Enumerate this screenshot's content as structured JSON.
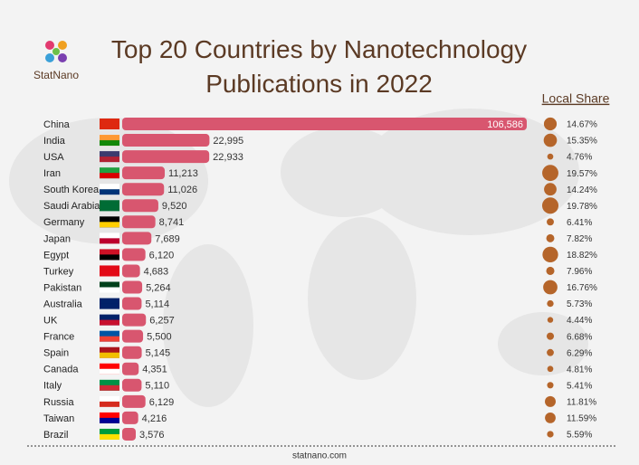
{
  "chart_data": {
    "type": "bar",
    "title": "Top 20 Countries by Nanotechnology Publications in 2022",
    "logo_text": "StatNano",
    "source": "statnano.com",
    "categories": [
      "China",
      "India",
      "USA",
      "Iran",
      "South Korea",
      "Saudi Arabia",
      "Germany",
      "Japan",
      "Egypt",
      "Turkey",
      "Pakistan",
      "Australia",
      "UK",
      "France",
      "Spain",
      "Canada",
      "Italy",
      "Russia",
      "Taiwan",
      "Brazil"
    ],
    "values": [
      106586,
      22995,
      22933,
      11213,
      11026,
      9520,
      8741,
      7689,
      6120,
      4683,
      5264,
      5114,
      6257,
      5500,
      5145,
      4351,
      5110,
      6129,
      4216,
      3576
    ],
    "value_labels": [
      "106,586",
      "22,995",
      "22,933",
      "11,213",
      "11,026",
      "9,520",
      "8,741",
      "7,689",
      "6,120",
      "4,683",
      "5,264",
      "5,114",
      "6,257",
      "5,500",
      "5,145",
      "4,351",
      "5,110",
      "6,129",
      "4,216",
      "3,576"
    ],
    "color": "#d8566f",
    "local_share": {
      "name": "Local Share",
      "color": "#b5652a",
      "values": [
        14.67,
        15.35,
        4.76,
        19.57,
        14.24,
        19.78,
        6.41,
        7.82,
        18.82,
        7.96,
        16.76,
        5.73,
        4.44,
        6.68,
        6.29,
        4.81,
        5.41,
        11.81,
        11.59,
        5.59
      ],
      "value_labels": [
        "14.67%",
        "15.35%",
        "4.76%",
        "19.57%",
        "14.24%",
        "19.78%",
        "6.41%",
        "7.82%",
        "18.82%",
        "7.96%",
        "16.76%",
        "5.73%",
        "4.44%",
        "6.68%",
        "6.29%",
        "4.81%",
        "5.41%",
        "11.81%",
        "11.59%",
        "5.59%"
      ]
    }
  }
}
